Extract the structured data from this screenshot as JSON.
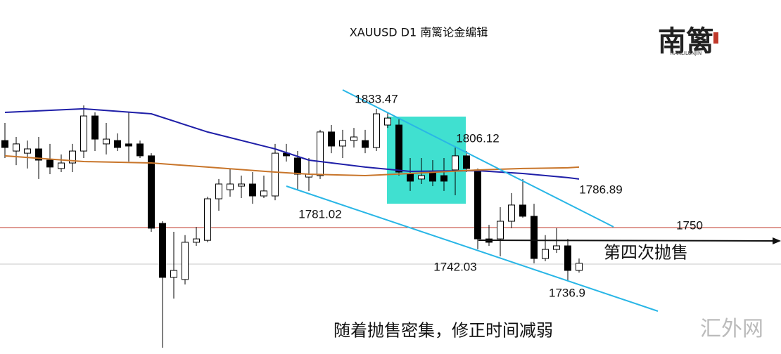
{
  "chart_data": {
    "type": "candlestick",
    "title": "XAUUSD  D1  南篱论金编辑",
    "ylim": [
      1695.9,
      1894.57
    ],
    "up_color": "#ffffff",
    "down_color": "#000000",
    "candles": {
      "open": [
        1815.7,
        1809.8,
        1808.6,
        1811.0,
        1804.7,
        1800.0,
        1803.1,
        1809.8,
        1829.5,
        1813.8,
        1815.7,
        1813.8,
        1813.8,
        1807.1,
        1769.2,
        1738.9,
        1737.7,
        1758.6,
        1759.7,
        1783.0,
        1788.1,
        1790.1,
        1791.3,
        1784.6,
        1784.6,
        1808.6,
        1805.9,
        1795.2,
        1796.0,
        1820.5,
        1812.6,
        1815.7,
        1815.7,
        1811.8,
        1824.4,
        1824.4,
        1796.8,
        1794.1,
        1798.0,
        1796.0,
        1799.2,
        1807.1,
        1799.2,
        1760.5,
        1760.5,
        1770.4,
        1779.5,
        1773.2,
        1749.5,
        1754.6,
        1756.6,
        1742.8
      ],
      "high": [
        1825.6,
        1817.7,
        1815.7,
        1817.7,
        1813.8,
        1807.9,
        1813.8,
        1835.4,
        1831.5,
        1825.6,
        1819.7,
        1831.5,
        1815.7,
        1808.6,
        1770.4,
        1764.5,
        1762.6,
        1767.2,
        1784.2,
        1794.1,
        1800.0,
        1796.0,
        1798.0,
        1796.0,
        1813.8,
        1813.8,
        1809.8,
        1805.9,
        1821.7,
        1824.4,
        1821.7,
        1822.8,
        1821.7,
        1833.47,
        1831.5,
        1827.6,
        1805.9,
        1805.9,
        1804.7,
        1805.9,
        1811.8,
        1809.8,
        1800.0,
        1768.4,
        1778.3,
        1786.2,
        1794.1,
        1780.2,
        1762.6,
        1766.5,
        1760.5,
        1749.5
      ],
      "low": [
        1805.9,
        1801.9,
        1800.0,
        1794.1,
        1796.8,
        1798.0,
        1798.0,
        1805.9,
        1809.8,
        1807.9,
        1809.8,
        1803.9,
        1805.9,
        1764.5,
        1699.4,
        1727.0,
        1734.9,
        1756.6,
        1758.6,
        1776.3,
        1784.2,
        1783.4,
        1780.2,
        1783.4,
        1782.2,
        1803.9,
        1788.1,
        1787.4,
        1794.1,
        1808.6,
        1805.9,
        1811.8,
        1808.6,
        1809.8,
        1822.8,
        1796.0,
        1787.4,
        1791.3,
        1790.1,
        1787.4,
        1785.0,
        1798.0,
        1754.7,
        1756.6,
        1750.7,
        1766.5,
        1772.4,
        1746.8,
        1748.0,
        1752.6,
        1736.9,
        1741.6
      ],
      "close": [
        1811.8,
        1813.8,
        1811.0,
        1804.7,
        1800.8,
        1803.1,
        1809.8,
        1829.5,
        1816.5,
        1816.5,
        1811.8,
        1812.6,
        1807.1,
        1766.5,
        1738.9,
        1742.8,
        1758.6,
        1760.5,
        1783.0,
        1791.3,
        1791.3,
        1791.3,
        1784.6,
        1787.4,
        1808.6,
        1807.1,
        1796.8,
        1796.8,
        1820.5,
        1812.6,
        1815.7,
        1817.7,
        1811.8,
        1830.7,
        1828.3,
        1798.0,
        1792.9,
        1796.0,
        1792.9,
        1792.9,
        1807.1,
        1800.0,
        1760.5,
        1758.6,
        1770.4,
        1779.5,
        1773.2,
        1749.5,
        1754.6,
        1756.6,
        1742.8,
        1746.8
      ]
    },
    "lines": [
      {
        "color": "#1f1fa8",
        "x": [
          0,
          7,
          13,
          18,
          24,
          27,
          32,
          36,
          42,
          46,
          50,
          51
        ],
        "values": [
          1831.5,
          1833.5,
          1830.7,
          1820.5,
          1811.0,
          1804.7,
          1800.8,
          1798.4,
          1798.8,
          1797.2,
          1794.9,
          1794.1
        ]
      },
      {
        "color": "#c8752a",
        "x": [
          0,
          7,
          13,
          18,
          24,
          27,
          32,
          36,
          42,
          46,
          50,
          51
        ],
        "values": [
          1807.1,
          1803.9,
          1803.1,
          1800.8,
          1798.0,
          1796.8,
          1796.0,
          1797.2,
          1799.2,
          1800.0,
          1800.4,
          1800.8
        ]
      }
    ],
    "annotations": [
      "1833.47",
      "1806.12",
      "1786.89",
      "1781.02",
      "1750",
      "1742.03",
      "1736.9",
      "第四次抛售",
      "随着抛售密集，修正时间减弱"
    ]
  },
  "watermark": {
    "logo": "南篱",
    "logo_sub": "NANLILUNJIN",
    "site": "汇外网"
  }
}
